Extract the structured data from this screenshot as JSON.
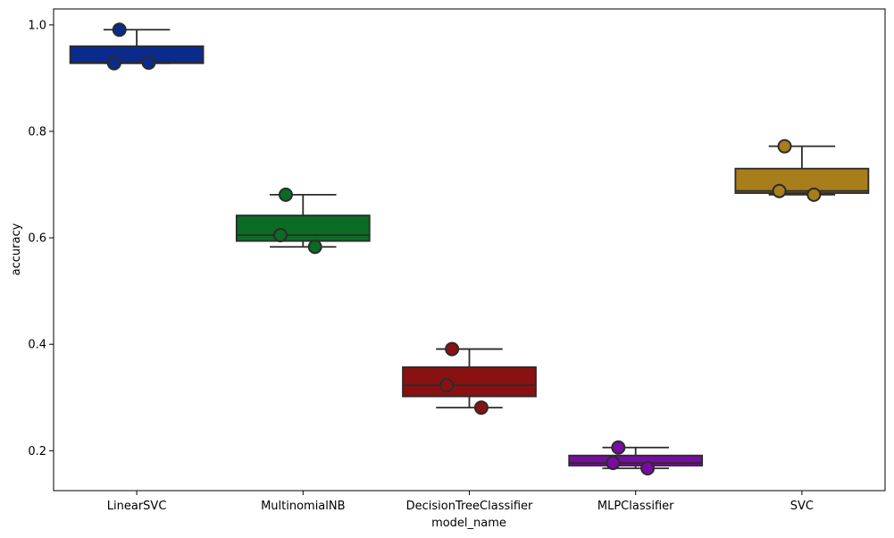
{
  "chart_data": {
    "type": "box",
    "xlabel": "model_name",
    "ylabel": "accuracy",
    "ylim": [
      0.125,
      1.03
    ],
    "yticks": [
      0.2,
      0.4,
      0.6,
      0.8,
      1.0
    ],
    "ytick_labels": [
      "0.2",
      "0.4",
      "0.6",
      "0.8",
      "1.0"
    ],
    "grid": false,
    "categories": [
      "LinearSVC",
      "MultinomialNB",
      "DecisionTreeClassifier",
      "MLPClassifier",
      "SVC"
    ],
    "colors": [
      "#0a2b8c",
      "#0a6b25",
      "#8a1111",
      "#7a0aa6",
      "#a87d1c"
    ],
    "boxes": [
      {
        "name": "LinearSVC",
        "whisker_low": 0.928,
        "q1": 0.928,
        "median": 0.929,
        "q3": 0.96,
        "whisker_high": 0.991,
        "points": [
          0.991,
          0.928,
          0.929
        ]
      },
      {
        "name": "MultinomialNB",
        "whisker_low": 0.583,
        "q1": 0.594,
        "median": 0.605,
        "q3": 0.642,
        "whisker_high": 0.681,
        "points": [
          0.681,
          0.605,
          0.583
        ]
      },
      {
        "name": "DecisionTreeClassifier",
        "whisker_low": 0.281,
        "q1": 0.302,
        "median": 0.323,
        "q3": 0.357,
        "whisker_high": 0.391,
        "points": [
          0.391,
          0.323,
          0.281
        ]
      },
      {
        "name": "MLPClassifier",
        "whisker_low": 0.167,
        "q1": 0.172,
        "median": 0.177,
        "q3": 0.191,
        "whisker_high": 0.206,
        "points": [
          0.206,
          0.177,
          0.167
        ]
      },
      {
        "name": "SVC",
        "whisker_low": 0.681,
        "q1": 0.684,
        "median": 0.688,
        "q3": 0.73,
        "whisker_high": 0.772,
        "points": [
          0.772,
          0.688,
          0.681
        ]
      }
    ]
  }
}
